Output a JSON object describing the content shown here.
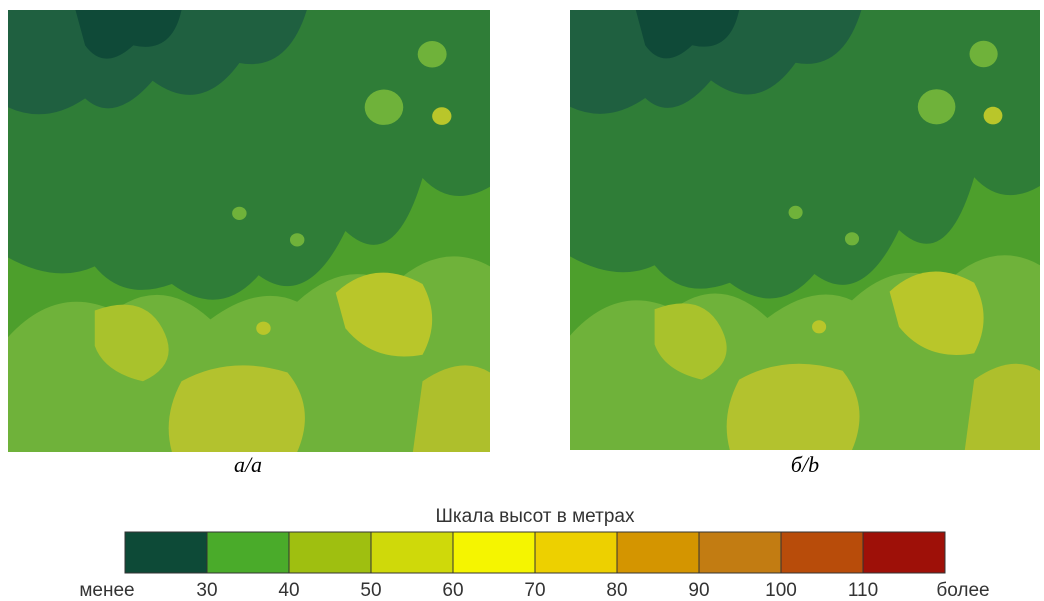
{
  "panels": [
    {
      "caption": "а/a"
    },
    {
      "caption": "б/b"
    }
  ],
  "scale": {
    "title": "Шкала высот в метрах",
    "colors": [
      "#0d4a37",
      "#4aab2a",
      "#9fbf10",
      "#cfd90a",
      "#f5f500",
      "#edd000",
      "#d49500",
      "#c27c12",
      "#b84c0a",
      "#9e1008"
    ],
    "labels": [
      "менее",
      "30",
      "40",
      "50",
      "60",
      "70",
      "80",
      "90",
      "100",
      "110",
      "более"
    ]
  }
}
